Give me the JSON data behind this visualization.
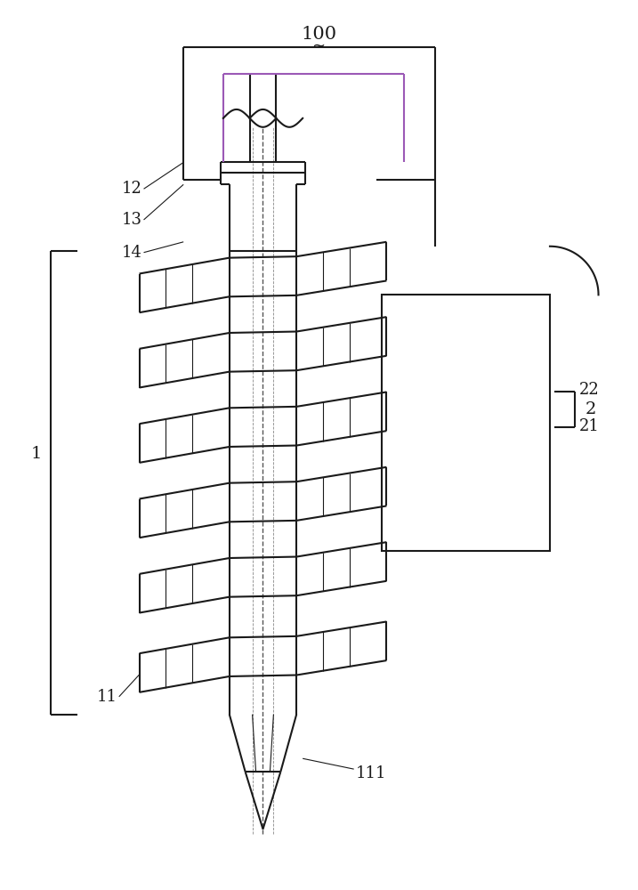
{
  "bg_color": "#ffffff",
  "line_color": "#1a1a1a",
  "line_width": 1.5,
  "fig_width": 7.17,
  "fig_height": 10.0,
  "inner_frame_color": "#9b59b6",
  "label_fontsize": 13
}
